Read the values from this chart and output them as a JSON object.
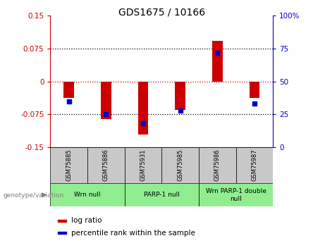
{
  "title": "GDS1675 / 10166",
  "samples": [
    "GSM75885",
    "GSM75886",
    "GSM75931",
    "GSM75985",
    "GSM75986",
    "GSM75987"
  ],
  "log_ratios": [
    -0.038,
    -0.086,
    -0.122,
    -0.065,
    0.092,
    -0.038
  ],
  "percentile_ranks": [
    35,
    25,
    18,
    28,
    72,
    33
  ],
  "ylim": [
    -0.15,
    0.15
  ],
  "yticks_left": [
    -0.15,
    -0.075,
    0,
    0.075,
    0.15
  ],
  "ytick_labels_left": [
    "-0.15",
    "-0.075",
    "0",
    "0.075",
    "0.15"
  ],
  "yticks_right_pct": [
    0,
    25,
    50,
    75,
    100
  ],
  "bar_color": "#cc0000",
  "dot_color": "#0000cc",
  "left_axis_color": "#cc0000",
  "right_axis_color": "#0000cc",
  "zero_line_color": "#cc0000",
  "dotted_line_color": "#000000",
  "groups": [
    {
      "label": "Wrn null",
      "start": 0,
      "end": 2,
      "color": "#90ee90"
    },
    {
      "label": "PARP-1 null",
      "start": 2,
      "end": 4,
      "color": "#90ee90"
    },
    {
      "label": "Wrn PARP-1 double\nnull",
      "start": 4,
      "end": 6,
      "color": "#90ee90"
    }
  ],
  "genotype_label": "genotype/variation",
  "legend_items": [
    {
      "label": "log ratio",
      "color": "#cc0000"
    },
    {
      "label": "percentile rank within the sample",
      "color": "#0000cc"
    }
  ],
  "group_bg": "#c8c8c8"
}
